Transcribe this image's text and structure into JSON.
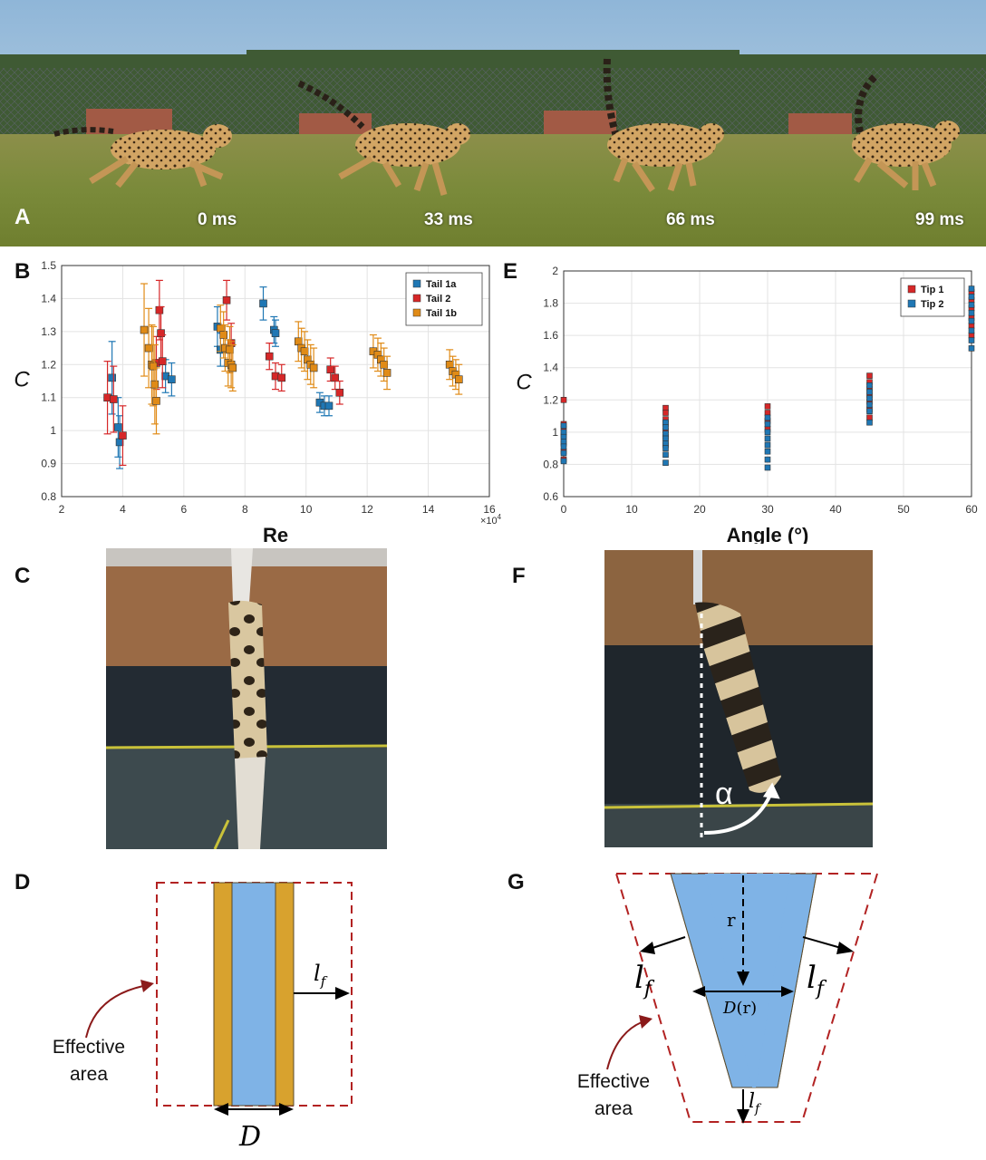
{
  "panels": {
    "a": "A",
    "b": "B",
    "c": "C",
    "d": "D",
    "e": "E",
    "f": "F",
    "g": "G"
  },
  "panel_a": {
    "times": [
      "0 ms",
      "33 ms",
      "66 ms",
      "99 ms"
    ]
  },
  "colors": {
    "tail1a": "#1f77b4",
    "tail2": "#d62728",
    "tail1b": "#e08b17",
    "tip1": "#d62728",
    "tip2": "#1f77b4",
    "tail_core": "#7fb3e6",
    "tail_fur": "#d8a22e",
    "effective_area": "#b22222"
  },
  "chart_data": [
    {
      "panel": "B",
      "type": "scatter",
      "xlabel": "Re",
      "ylabel": "C",
      "x_multiplier": "×10^4",
      "xlim": [
        2,
        16
      ],
      "ylim": [
        0.8,
        1.5
      ],
      "xticks": [
        2,
        4,
        6,
        8,
        10,
        12,
        14,
        16
      ],
      "yticks": [
        0.8,
        0.9,
        1,
        1.1,
        1.2,
        1.3,
        1.4,
        1.5
      ],
      "grid": true,
      "legend_position": "top-right",
      "series": [
        {
          "name": "Tail 1a",
          "points": [
            {
              "x": 3.65,
              "y": 1.16,
              "err": 0.11
            },
            {
              "x": 3.85,
              "y": 1.01,
              "err": 0.09
            },
            {
              "x": 3.9,
              "y": 0.965,
              "err": 0.08
            },
            {
              "x": 5.4,
              "y": 1.165,
              "err": 0.05
            },
            {
              "x": 5.6,
              "y": 1.155,
              "err": 0.05
            },
            {
              "x": 7.1,
              "y": 1.315,
              "err": 0.06
            },
            {
              "x": 7.2,
              "y": 1.245,
              "err": 0.05
            },
            {
              "x": 8.6,
              "y": 1.385,
              "err": 0.05
            },
            {
              "x": 8.95,
              "y": 1.305,
              "err": 0.04
            },
            {
              "x": 9.0,
              "y": 1.295,
              "err": 0.04
            },
            {
              "x": 10.45,
              "y": 1.085,
              "err": 0.03
            },
            {
              "x": 10.6,
              "y": 1.075,
              "err": 0.03
            },
            {
              "x": 10.75,
              "y": 1.075,
              "err": 0.03
            }
          ]
        },
        {
          "name": "Tail 2",
          "points": [
            {
              "x": 3.5,
              "y": 1.1,
              "err": 0.11
            },
            {
              "x": 3.7,
              "y": 1.095,
              "err": 0.1
            },
            {
              "x": 4.0,
              "y": 0.985,
              "err": 0.09
            },
            {
              "x": 5.1,
              "y": 1.205,
              "err": 0.08
            },
            {
              "x": 5.2,
              "y": 1.365,
              "err": 0.09
            },
            {
              "x": 5.25,
              "y": 1.295,
              "err": 0.08
            },
            {
              "x": 5.3,
              "y": 1.21,
              "err": 0.08
            },
            {
              "x": 7.4,
              "y": 1.395,
              "err": 0.06
            },
            {
              "x": 7.55,
              "y": 1.265,
              "err": 0.06
            },
            {
              "x": 8.8,
              "y": 1.225,
              "err": 0.04
            },
            {
              "x": 9.0,
              "y": 1.165,
              "err": 0.04
            },
            {
              "x": 9.2,
              "y": 1.16,
              "err": 0.04
            },
            {
              "x": 10.8,
              "y": 1.185,
              "err": 0.035
            },
            {
              "x": 10.95,
              "y": 1.16,
              "err": 0.035
            },
            {
              "x": 11.1,
              "y": 1.115,
              "err": 0.035
            }
          ]
        },
        {
          "name": "Tail 1b",
          "points": [
            {
              "x": 4.7,
              "y": 1.305,
              "err": 0.14
            },
            {
              "x": 4.85,
              "y": 1.25,
              "err": 0.12
            },
            {
              "x": 4.95,
              "y": 1.2,
              "err": 0.12
            },
            {
              "x": 5.0,
              "y": 1.195,
              "err": 0.12
            },
            {
              "x": 5.05,
              "y": 1.14,
              "err": 0.12
            },
            {
              "x": 5.1,
              "y": 1.09,
              "err": 0.1
            },
            {
              "x": 7.2,
              "y": 1.31,
              "err": 0.07
            },
            {
              "x": 7.3,
              "y": 1.29,
              "err": 0.07
            },
            {
              "x": 7.35,
              "y": 1.25,
              "err": 0.07
            },
            {
              "x": 7.45,
              "y": 1.205,
              "err": 0.07
            },
            {
              "x": 7.5,
              "y": 1.245,
              "err": 0.07
            },
            {
              "x": 7.55,
              "y": 1.2,
              "err": 0.07
            },
            {
              "x": 7.6,
              "y": 1.19,
              "err": 0.07
            },
            {
              "x": 9.75,
              "y": 1.27,
              "err": 0.06
            },
            {
              "x": 9.85,
              "y": 1.25,
              "err": 0.06
            },
            {
              "x": 9.95,
              "y": 1.24,
              "err": 0.06
            },
            {
              "x": 10.05,
              "y": 1.215,
              "err": 0.06
            },
            {
              "x": 10.15,
              "y": 1.2,
              "err": 0.06
            },
            {
              "x": 10.25,
              "y": 1.19,
              "err": 0.06
            },
            {
              "x": 12.2,
              "y": 1.24,
              "err": 0.05
            },
            {
              "x": 12.35,
              "y": 1.23,
              "err": 0.05
            },
            {
              "x": 12.45,
              "y": 1.215,
              "err": 0.05
            },
            {
              "x": 12.55,
              "y": 1.2,
              "err": 0.05
            },
            {
              "x": 12.65,
              "y": 1.175,
              "err": 0.05
            },
            {
              "x": 14.7,
              "y": 1.2,
              "err": 0.045
            },
            {
              "x": 14.8,
              "y": 1.18,
              "err": 0.045
            },
            {
              "x": 14.9,
              "y": 1.17,
              "err": 0.045
            },
            {
              "x": 15.0,
              "y": 1.155,
              "err": 0.045
            }
          ]
        }
      ]
    },
    {
      "panel": "E",
      "type": "scatter",
      "xlabel": "Angle (°)",
      "ylabel": "C",
      "xlim": [
        0,
        60
      ],
      "ylim": [
        0.6,
        2
      ],
      "xticks": [
        0,
        10,
        20,
        30,
        40,
        50,
        60
      ],
      "yticks": [
        0.6,
        0.8,
        1,
        1.2,
        1.4,
        1.6,
        1.8,
        2
      ],
      "grid": true,
      "legend_position": "top-right",
      "series": [
        {
          "name": "Tip 1",
          "points": [
            {
              "x": 0,
              "y": 1.2
            },
            {
              "x": 0,
              "y": 1.05
            },
            {
              "x": 0,
              "y": 1.02
            },
            {
              "x": 0,
              "y": 0.98
            },
            {
              "x": 0,
              "y": 0.93
            },
            {
              "x": 0,
              "y": 0.88
            },
            {
              "x": 0,
              "y": 0.83
            },
            {
              "x": 15,
              "y": 1.15
            },
            {
              "x": 15,
              "y": 1.12
            },
            {
              "x": 15,
              "y": 1.08
            },
            {
              "x": 15,
              "y": 1.05
            },
            {
              "x": 15,
              "y": 1.01
            },
            {
              "x": 15,
              "y": 0.97
            },
            {
              "x": 15,
              "y": 0.92
            },
            {
              "x": 30,
              "y": 1.16
            },
            {
              "x": 30,
              "y": 1.12
            },
            {
              "x": 30,
              "y": 1.07
            },
            {
              "x": 30,
              "y": 1.02
            },
            {
              "x": 45,
              "y": 1.35
            },
            {
              "x": 45,
              "y": 1.31
            },
            {
              "x": 45,
              "y": 1.27
            },
            {
              "x": 45,
              "y": 1.23
            },
            {
              "x": 45,
              "y": 1.19
            },
            {
              "x": 45,
              "y": 1.14
            },
            {
              "x": 45,
              "y": 1.09
            },
            {
              "x": 60,
              "y": 1.87
            },
            {
              "x": 60,
              "y": 1.82
            },
            {
              "x": 60,
              "y": 1.77
            },
            {
              "x": 60,
              "y": 1.71
            },
            {
              "x": 60,
              "y": 1.66
            },
            {
              "x": 60,
              "y": 1.6
            }
          ]
        },
        {
          "name": "Tip 2",
          "points": [
            {
              "x": 0,
              "y": 1.04
            },
            {
              "x": 0,
              "y": 1.0
            },
            {
              "x": 0,
              "y": 0.97
            },
            {
              "x": 0,
              "y": 0.94
            },
            {
              "x": 0,
              "y": 0.91
            },
            {
              "x": 0,
              "y": 0.87
            },
            {
              "x": 0,
              "y": 0.82
            },
            {
              "x": 15,
              "y": 1.06
            },
            {
              "x": 15,
              "y": 1.03
            },
            {
              "x": 15,
              "y": 0.99
            },
            {
              "x": 15,
              "y": 0.96
            },
            {
              "x": 15,
              "y": 0.93
            },
            {
              "x": 15,
              "y": 0.9
            },
            {
              "x": 15,
              "y": 0.86
            },
            {
              "x": 15,
              "y": 0.81
            },
            {
              "x": 30,
              "y": 1.09
            },
            {
              "x": 30,
              "y": 1.05
            },
            {
              "x": 30,
              "y": 1.0
            },
            {
              "x": 30,
              "y": 0.96
            },
            {
              "x": 30,
              "y": 0.92
            },
            {
              "x": 30,
              "y": 0.88
            },
            {
              "x": 30,
              "y": 0.83
            },
            {
              "x": 30,
              "y": 0.78
            },
            {
              "x": 45,
              "y": 1.29
            },
            {
              "x": 45,
              "y": 1.25
            },
            {
              "x": 45,
              "y": 1.21
            },
            {
              "x": 45,
              "y": 1.17
            },
            {
              "x": 45,
              "y": 1.13
            },
            {
              "x": 45,
              "y": 1.06
            },
            {
              "x": 60,
              "y": 1.89
            },
            {
              "x": 60,
              "y": 1.84
            },
            {
              "x": 60,
              "y": 1.79
            },
            {
              "x": 60,
              "y": 1.74
            },
            {
              "x": 60,
              "y": 1.69
            },
            {
              "x": 60,
              "y": 1.63
            },
            {
              "x": 60,
              "y": 1.57
            },
            {
              "x": 60,
              "y": 1.52
            }
          ]
        }
      ]
    }
  ],
  "panel_d": {
    "lf_label": "l",
    "lf_sub": "f",
    "d_label": "D",
    "effective_line1": "Effective",
    "effective_line2": "area"
  },
  "panel_f": {
    "alpha_label": "α"
  },
  "panel_g": {
    "r_label": "r",
    "dr_label": "D",
    "dr_suffix": "(r)",
    "lf_label": "l",
    "lf_sub": "f",
    "effective_line1": "Effective",
    "effective_line2": "area"
  }
}
